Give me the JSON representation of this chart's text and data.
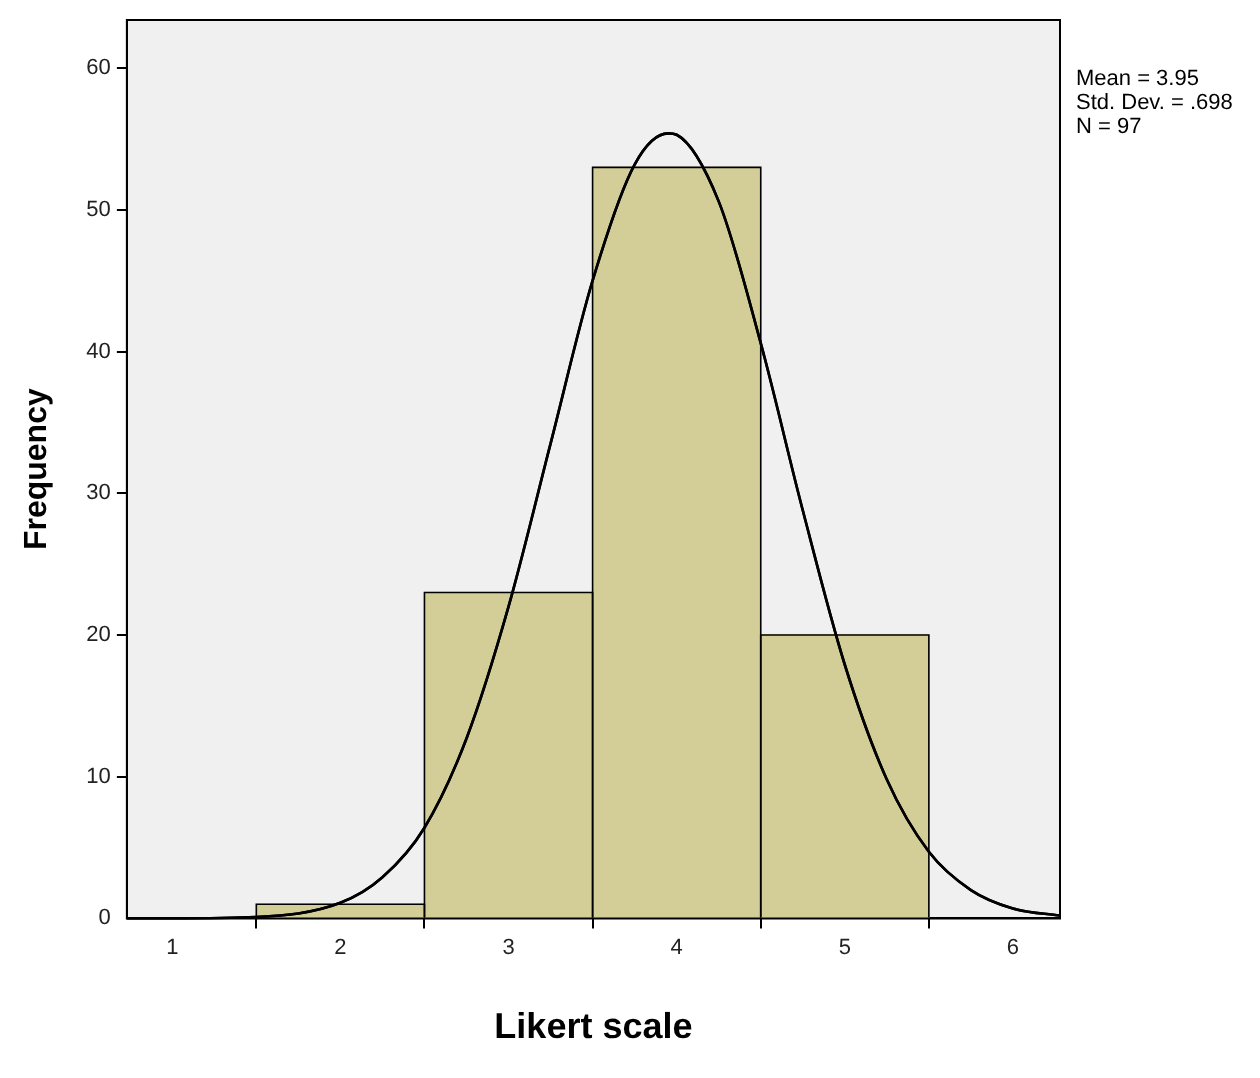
{
  "chart_data": {
    "type": "histogram",
    "xlabel": "Likert scale",
    "ylabel": "Frequency",
    "bins": [
      1.5,
      2.5,
      3.5,
      4.5,
      5.5
    ],
    "values": [
      1,
      23,
      53,
      20
    ],
    "color": "#d3ce98",
    "series": [
      {
        "type": "line",
        "color": "#000000",
        "x": [
          0.73,
          1.0,
          1.5,
          2.0,
          2.25,
          2.5,
          2.75,
          3.0,
          3.25,
          3.5,
          3.75,
          3.95,
          4.0,
          4.25,
          4.5,
          4.75,
          5.0,
          5.25,
          5.5,
          5.75,
          6.0,
          6.28
        ],
        "values": [
          0,
          0,
          0.1,
          1.1,
          2.9,
          6.4,
          12.7,
          22.0,
          33.5,
          45.0,
          53.2,
          55.4,
          55.3,
          50.6,
          40.6,
          28.8,
          17.9,
          9.8,
          4.7,
          2.0,
          0.7,
          0.2
        ]
      }
    ],
    "xlim": [
      0.73,
      6.28
    ],
    "xticks": [
      1,
      2,
      3,
      4,
      5,
      6
    ],
    "ylim": [
      0,
      63.4
    ],
    "yticks": [
      0,
      10,
      20,
      30,
      40,
      50,
      60
    ],
    "grid": false,
    "legend": false,
    "annotations": [
      "Mean = 3.95",
      "Std. Dev. = .698",
      "N = 97"
    ]
  }
}
